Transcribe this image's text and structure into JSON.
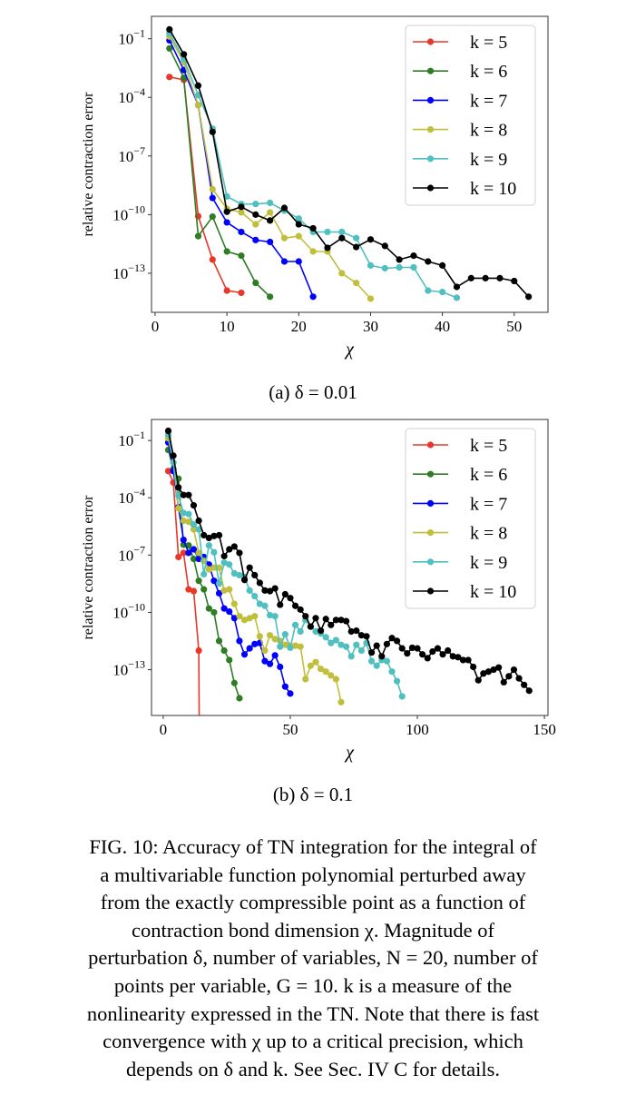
{
  "figure": {
    "subcaptions": [
      "(a) δ = 0.01",
      "(b) δ = 0.1"
    ],
    "caption_lines": [
      "FIG. 10: Accuracy of TN integration for the integral of",
      "a multivariable function polynomial perturbed away",
      "from the exactly compressible point as a function of",
      "contraction bond dimension χ. Magnitude of",
      "perturbation δ, number of variables, N = 20, number of",
      "points per variable, G = 10. k is a measure of the",
      "nonlinearity expressed in the TN. Note that there is fast",
      "convergence with χ up to a critical precision, which",
      "depends on δ and k. See Sec. IV C for details."
    ]
  },
  "chart_data": [
    {
      "type": "line",
      "xlabel": "χ",
      "ylabel": "relative contraction error",
      "xlim": [
        -0.5,
        54.7
      ],
      "ylim": [
        1e-15,
        1.4
      ],
      "yscale": "log",
      "grid": false,
      "legend": "top-right",
      "xticks": [
        {
          "value": 0,
          "label": "0"
        },
        {
          "value": 10,
          "label": "10"
        },
        {
          "value": 20,
          "label": "20"
        },
        {
          "value": 30,
          "label": "30"
        },
        {
          "value": 40,
          "label": "40"
        },
        {
          "value": 50,
          "label": "50"
        }
      ],
      "yticks": [
        {
          "value": 0.1,
          "base": "10",
          "exponent": "−1"
        },
        {
          "value": 0.0001,
          "base": "10",
          "exponent": "−4"
        },
        {
          "value": 1e-07,
          "base": "10",
          "exponent": "−7"
        },
        {
          "value": 1e-10,
          "base": "10",
          "exponent": "−10"
        },
        {
          "value": 1e-13,
          "base": "10",
          "exponent": "−13"
        }
      ],
      "series": [
        {
          "name": "k = 5",
          "color": "#e8382a",
          "x": [
            2,
            4,
            6,
            8,
            10,
            12
          ],
          "y": [
            0.0011,
            0.00079,
            8.3e-11,
            5e-13,
            1.3e-14,
            1e-14
          ]
        },
        {
          "name": "k = 6",
          "color": "#2e7d24",
          "x": [
            2,
            4,
            6,
            8,
            10,
            12,
            14,
            16
          ],
          "y": [
            0.032,
            0.001,
            7.9e-12,
            7.9e-11,
            1.3e-12,
            7.9e-13,
            3.2e-14,
            6.3e-15
          ]
        },
        {
          "name": "k = 7",
          "color": "#0000ff",
          "x": [
            2,
            4,
            6,
            8,
            10,
            12,
            14,
            16,
            18,
            20,
            22
          ],
          "y": [
            0.083,
            0.0025,
            4e-05,
            7.1e-10,
            4e-11,
            1.3e-11,
            5e-12,
            4e-12,
            4e-13,
            4e-13,
            6.3e-15
          ]
        },
        {
          "name": "k = 8",
          "color": "#bfbf3c",
          "x": [
            2,
            4,
            6,
            8,
            10,
            12,
            14,
            16,
            18,
            20,
            22,
            24,
            26,
            28,
            30
          ],
          "y": [
            0.13,
            0.0063,
            4e-05,
            2e-09,
            2e-10,
            1.3e-10,
            3.2e-11,
            1.3e-10,
            6.3e-12,
            7.9e-12,
            1.3e-12,
            1.3e-12,
            1e-13,
            3.2e-14,
            5e-15
          ]
        },
        {
          "name": "k = 9",
          "color": "#4fbfbf",
          "x": [
            2,
            4,
            6,
            8,
            10,
            12,
            14,
            16,
            18,
            20,
            22,
            24,
            26,
            28,
            30,
            32,
            34,
            36,
            38,
            40,
            42
          ],
          "y": [
            0.19,
            0.0091,
            0.00013,
            2.5e-06,
            8.5e-10,
            3.5e-10,
            3.5e-10,
            4e-10,
            1.6e-10,
            6.3e-11,
            1.3e-11,
            1.3e-11,
            1.3e-11,
            6.3e-12,
            2.5e-13,
            1.8e-13,
            2e-13,
            2e-13,
            1.3e-14,
            1.1e-14,
            5.6e-15
          ]
        },
        {
          "name": "k = 10",
          "color": "#000000",
          "x": [
            2,
            4,
            6,
            8,
            10,
            12,
            14,
            16,
            18,
            20,
            22,
            24,
            26,
            28,
            30,
            32,
            34,
            36,
            38,
            40,
            42,
            44,
            46,
            48,
            50,
            52
          ],
          "y": [
            0.3,
            0.016,
            0.0004,
            1.7e-06,
            1.4e-10,
            2.5e-10,
            1e-10,
            5e-11,
            2.2e-10,
            3.2e-11,
            2e-11,
            2e-12,
            6.3e-12,
            2.2e-12,
            5.4e-12,
            2.5e-12,
            5e-13,
            7.9e-13,
            4e-13,
            2.5e-13,
            2e-14,
            5.6e-14,
            5.6e-14,
            5.6e-14,
            4e-14,
            6.3e-15
          ]
        }
      ]
    },
    {
      "type": "line",
      "xlabel": "χ",
      "ylabel": "relative contraction error",
      "xlim": [
        -4.6,
        151.4
      ],
      "ylim": [
        4e-16,
        1.26
      ],
      "yscale": "log",
      "grid": false,
      "legend": "top-right",
      "xticks": [
        {
          "value": 0,
          "label": "0"
        },
        {
          "value": 50,
          "label": "50"
        },
        {
          "value": 100,
          "label": "100"
        },
        {
          "value": 150,
          "label": "150"
        }
      ],
      "yticks": [
        {
          "value": 0.1,
          "base": "10",
          "exponent": "−1"
        },
        {
          "value": 0.0001,
          "base": "10",
          "exponent": "−4"
        },
        {
          "value": 1e-07,
          "base": "10",
          "exponent": "−7"
        },
        {
          "value": 1e-10,
          "base": "10",
          "exponent": "−10"
        },
        {
          "value": 1e-13,
          "base": "10",
          "exponent": "−13"
        }
      ],
      "series": [
        {
          "name": "k = 5",
          "color": "#e8382a",
          "x": [
            2,
            4,
            6,
            8,
            10,
            12,
            14,
            16
          ],
          "y": [
            0.0025,
            0.00063,
            7.9e-08,
            1.3e-07,
            1.6e-09,
            1.3e-09,
            1e-12,
            0
          ]
        },
        {
          "name": "k = 6",
          "color": "#2e7d24",
          "x": [
            2,
            4,
            6,
            8,
            10,
            12,
            14,
            16,
            18,
            20,
            22,
            24,
            26,
            28,
            30
          ],
          "y": [
            0.032,
            0.0032,
            0.001,
            3.5e-07,
            3.2e-07,
            6.3e-08,
            4.5e-09,
            1.6e-09,
            1.6e-10,
            1e-10,
            3.2e-12,
            1e-12,
            3.2e-13,
            2e-14,
            3.2e-15
          ]
        },
        {
          "name": "k = 7",
          "color": "#0000ff",
          "x": [
            2,
            4,
            6,
            8,
            10,
            12,
            14,
            16,
            18,
            20,
            22,
            24,
            26,
            28,
            30,
            32,
            34,
            36,
            38,
            40,
            42,
            44,
            46,
            48,
            50
          ],
          "y": [
            0.079,
            0.0025,
            3.2e-05,
            6.3e-07,
            1.3e-07,
            2e-07,
            6.3e-08,
            7.9e-08,
            3.2e-08,
            4.5e-09,
            1e-09,
            1.6e-10,
            1.1e-10,
            5e-11,
            3.2e-12,
            6.3e-13,
            1.3e-12,
            2.2e-12,
            2.5e-12,
            2.8e-13,
            2e-13,
            5.6e-13,
            1.4e-13,
            1.3e-14,
            5.6e-15
          ]
        },
        {
          "name": "k = 8",
          "color": "#bfbf3c",
          "x": [
            2,
            4,
            6,
            8,
            10,
            12,
            14,
            16,
            18,
            20,
            22,
            24,
            26,
            28,
            30,
            32,
            34,
            36,
            38,
            40,
            42,
            44,
            46,
            48,
            50,
            52,
            54,
            56,
            58,
            60,
            62,
            64,
            66,
            68,
            70
          ],
          "y": [
            0.13,
            0.0071,
            2.8e-05,
            6.3e-06,
            5.6e-06,
            2.2e-06,
            1.3e-07,
            5e-08,
            1.8e-08,
            2.2e-08,
            2.2e-08,
            1.4e-09,
            1.6e-09,
            2.8e-10,
            6.3e-11,
            4e-11,
            5e-11,
            6.3e-11,
            5.6e-12,
            1e-12,
            6.3e-12,
            4e-12,
            3.2e-12,
            2e-12,
            1.8e-12,
            1.8e-12,
            1.6e-12,
            3.2e-14,
            1.6e-13,
            2.5e-13,
            1.1e-13,
            7.9e-14,
            5e-14,
            3.2e-14,
            2e-15
          ]
        },
        {
          "name": "k = 9",
          "color": "#4fbfbf",
          "x": [
            2,
            4,
            6,
            8,
            10,
            12,
            14,
            16,
            18,
            20,
            22,
            24,
            26,
            28,
            30,
            32,
            34,
            36,
            38,
            40,
            42,
            44,
            46,
            48,
            50,
            52,
            54,
            56,
            58,
            60,
            62,
            64,
            66,
            68,
            70,
            72,
            74,
            76,
            78,
            80,
            82,
            84,
            86,
            88,
            90,
            92,
            94
          ],
          "y": [
            0.2,
            0.0071,
            0.00013,
            1.6e-05,
            1.4e-05,
            4e-06,
            2.2e-06,
            1e-08,
            3.2e-07,
            1.4e-07,
            3.2e-09,
            4e-08,
            3.2e-08,
            1.1e-08,
            8.9e-09,
            7.1e-09,
            1.4e-09,
            7.1e-10,
            2.8e-10,
            2.2e-10,
            7.1e-11,
            6.3e-11,
            1.6e-12,
            7.1e-12,
            1.4e-12,
            2.2e-11,
            1e-11,
            4e-11,
            1.8e-11,
            1e-11,
            7.9e-12,
            5e-12,
            2.5e-12,
            3.5e-12,
            2e-12,
            1.6e-12,
            5e-13,
            2e-12,
            1e-12,
            2.5e-12,
            2.8e-13,
            1.6e-13,
            3.2e-13,
            2.8e-13,
            7.9e-14,
            2.5e-14,
            4e-15
          ]
        },
        {
          "name": "k = 10",
          "color": "#000000",
          "x": [
            2,
            4,
            6,
            8,
            10,
            12,
            14,
            16,
            18,
            20,
            22,
            24,
            26,
            28,
            30,
            32,
            34,
            36,
            38,
            40,
            42,
            44,
            46,
            48,
            50,
            52,
            54,
            56,
            58,
            60,
            62,
            64,
            66,
            68,
            70,
            72,
            74,
            76,
            78,
            80,
            82,
            84,
            86,
            88,
            90,
            92,
            94,
            96,
            98,
            100,
            102,
            104,
            106,
            108,
            110,
            112,
            114,
            116,
            118,
            120,
            122,
            124,
            126,
            128,
            130,
            132,
            134,
            136,
            138,
            140,
            142,
            144
          ],
          "y": [
            0.32,
            0.016,
            0.00035,
            0.00014,
            0.00014,
            4e-05,
            6.3e-06,
            1.1e-06,
            7.9e-07,
            1e-06,
            1.1e-06,
            8.9e-08,
            2e-07,
            2.8e-07,
            1.3e-07,
            5e-09,
            2.2e-08,
            8.9e-09,
            3.5e-09,
            1.4e-09,
            1.3e-09,
            1.8e-09,
            2.5e-10,
            8.9e-10,
            5.6e-10,
            2.2e-10,
            1.4e-10,
            6.3e-11,
            1.8e-11,
            5e-11,
            1.1e-11,
            4.5e-11,
            2.2e-11,
            4e-11,
            4e-11,
            3.5e-11,
            1e-11,
            1.1e-11,
            6.3e-12,
            5.6e-12,
            7.9e-13,
            1.8e-12,
            5e-13,
            2.2e-12,
            4.5e-12,
            3.2e-12,
            1.3e-12,
            7.1e-13,
            1.4e-12,
            1.3e-12,
            6.3e-13,
            4e-13,
            8.9e-13,
            1.3e-12,
            6.3e-13,
            1e-12,
            5e-13,
            4.5e-13,
            3.2e-13,
            3.2e-13,
            1.4e-13,
            2.8e-14,
            6.3e-14,
            7.9e-14,
            1e-13,
            1.3e-13,
            2.2e-14,
            4.5e-14,
            1e-13,
            3.5e-14,
            1.6e-14,
            7.9e-15
          ]
        }
      ]
    }
  ]
}
